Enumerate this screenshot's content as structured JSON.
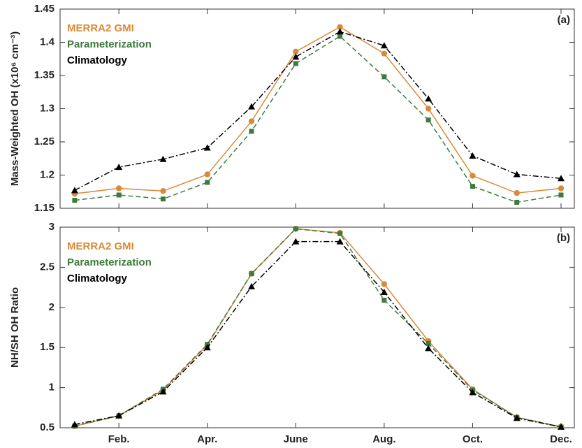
{
  "chart_data": [
    {
      "type": "line",
      "annotation": "(a)",
      "ylabel": "Mass-Weighted OH (x10⁶ cm⁻³)",
      "x": [
        1,
        2,
        3,
        4,
        5,
        6,
        7,
        8,
        9,
        10,
        11,
        12
      ],
      "xlim": [
        0.67,
        12.3
      ],
      "ylim": [
        1.15,
        1.45
      ],
      "yticks": [
        1.15,
        1.2,
        1.25,
        1.3,
        1.35,
        1.4,
        1.45
      ],
      "legend": "top-left",
      "series": [
        {
          "name": "MERRA2 GMI",
          "color": "#d98a38",
          "line_style": "solid",
          "marker": "circle",
          "values": [
            1.172,
            1.18,
            1.176,
            1.201,
            1.281,
            1.386,
            1.423,
            1.383,
            1.3,
            1.199,
            1.173,
            1.18
          ]
        },
        {
          "name": "Parameterization",
          "color": "#3d7a3d",
          "line_style": "dashed",
          "marker": "square",
          "values": [
            1.162,
            1.17,
            1.164,
            1.189,
            1.266,
            1.368,
            1.409,
            1.348,
            1.283,
            1.183,
            1.159,
            1.17
          ]
        },
        {
          "name": "Climatology",
          "color": "#000000",
          "line_style": "dashdot",
          "marker": "triangle",
          "values": [
            1.177,
            1.212,
            1.224,
            1.241,
            1.303,
            1.378,
            1.416,
            1.395,
            1.315,
            1.229,
            1.201,
            1.195
          ]
        }
      ]
    },
    {
      "type": "line",
      "annotation": "(b)",
      "ylabel": "NH/SH OH Ratio",
      "x": [
        1,
        2,
        3,
        4,
        5,
        6,
        7,
        8,
        9,
        10,
        11,
        12
      ],
      "xlim": [
        0.67,
        12.3
      ],
      "xticks": [
        {
          "value": 2,
          "label": "Feb."
        },
        {
          "value": 4,
          "label": "Apr."
        },
        {
          "value": 6,
          "label": "June"
        },
        {
          "value": 8,
          "label": "Aug."
        },
        {
          "value": 10,
          "label": "Oct."
        },
        {
          "value": 12,
          "label": "Dec."
        }
      ],
      "ylim": [
        0.5,
        3
      ],
      "yticks": [
        0.5,
        1,
        1.5,
        2,
        2.5,
        3
      ],
      "legend": "top-left",
      "series": [
        {
          "name": "MERRA2 GMI",
          "color": "#d98a38",
          "line_style": "solid",
          "marker": "circle",
          "values": [
            0.52,
            0.65,
            0.97,
            1.53,
            2.42,
            2.98,
            2.93,
            2.29,
            1.58,
            0.98,
            0.63,
            0.51
          ]
        },
        {
          "name": "Parameterization",
          "color": "#3d7a3d",
          "line_style": "dashed",
          "marker": "square",
          "values": [
            0.52,
            0.65,
            0.98,
            1.54,
            2.42,
            2.98,
            2.92,
            2.09,
            1.55,
            0.97,
            0.63,
            0.51
          ]
        },
        {
          "name": "Climatology",
          "color": "#000000",
          "line_style": "dashdot",
          "marker": "triangle",
          "values": [
            0.54,
            0.65,
            0.95,
            1.5,
            2.26,
            2.82,
            2.82,
            2.19,
            1.49,
            0.94,
            0.62,
            0.51
          ]
        }
      ]
    }
  ]
}
